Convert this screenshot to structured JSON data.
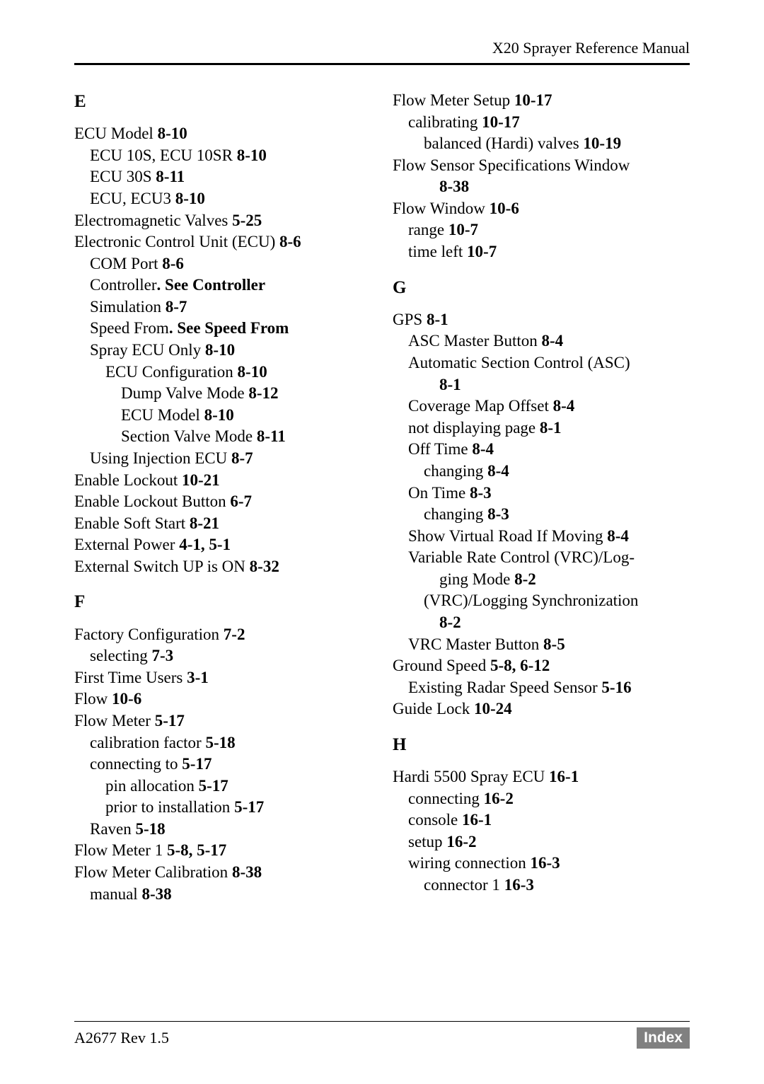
{
  "header": "X20 Sprayer Reference Manual",
  "footer": {
    "left": "A2677 Rev 1.5",
    "right": "Index"
  },
  "E": {
    "letter": "E",
    "e1": "ECU Model  ",
    "e1p": "8-10",
    "e2": "ECU 10S, ECU 10SR  ",
    "e2p": "8-10",
    "e3": "ECU 30S  ",
    "e3p": "8-11",
    "e4": "ECU, ECU3  ",
    "e4p": "8-10",
    "e5": "Electromagnetic Valves  ",
    "e5p": "5-25",
    "e6": "Electronic Control Unit (ECU)  ",
    "e6p": "8-6",
    "e7": "COM Port  ",
    "e7p": "8-6",
    "e8a": "Controller",
    "e8b": ".  See Controller",
    "e9": "Simulation  ",
    "e9p": "8-7",
    "e10a": "Speed From",
    "e10b": ".  See Speed From",
    "e11": "Spray ECU Only  ",
    "e11p": "8-10",
    "e12": "ECU Configuration  ",
    "e12p": "8-10",
    "e13": "Dump Valve Mode  ",
    "e13p": "8-12",
    "e14": "ECU Model  ",
    "e14p": "8-10",
    "e15": "Section Valve Mode  ",
    "e15p": "8-11",
    "e16": "Using Injection ECU  ",
    "e16p": "8-7",
    "e17": "Enable Lockout  ",
    "e17p": "10-21",
    "e18": "Enable Lockout Button  ",
    "e18p": "6-7",
    "e19": "Enable Soft Start  ",
    "e19p": "8-21",
    "e20": "External Power  ",
    "e20p": "4-1, 5-1",
    "e21": "External Switch UP is ON  ",
    "e21p": "8-32"
  },
  "F": {
    "letter": "F",
    "f1": "Factory Configuration  ",
    "f1p": "7-2",
    "f2": "selecting  ",
    "f2p": "7-3",
    "f3": "First Time Users  ",
    "f3p": "3-1",
    "f4": "Flow  ",
    "f4p": "10-6",
    "f5": "Flow Meter  ",
    "f5p": "5-17",
    "f6": "calibration factor  ",
    "f6p": "5-18",
    "f7": "connecting to  ",
    "f7p": "5-17",
    "f8": "pin allocation  ",
    "f8p": "5-17",
    "f9": "prior to installation  ",
    "f9p": "5-17",
    "f10": "Raven  ",
    "f10p": "5-18",
    "f11": "Flow Meter 1  ",
    "f11p": "5-8, 5-17",
    "f12": "Flow Meter Calibration  ",
    "f12p": "8-38",
    "f13": "manual  ",
    "f13p": "8-38"
  },
  "F2": {
    "r1": "Flow Meter Setup  ",
    "r1p": "10-17",
    "r2": "calibrating  ",
    "r2p": "10-17",
    "r3": "balanced (Hardi) valves  ",
    "r3p": "10-19",
    "r4a": "Flow Sensor Specifications Window  ",
    "r4p": "8-38",
    "r5": "Flow Window  ",
    "r5p": "10-6",
    "r6": "range  ",
    "r6p": "10-7",
    "r7": "time left  ",
    "r7p": "10-7"
  },
  "G": {
    "letter": "G",
    "g1": "GPS  ",
    "g1p": "8-1",
    "g2": "ASC Master Button  ",
    "g2p": "8-4",
    "g3a": "Automatic Section Control (ASC)  ",
    "g3p": "8-1",
    "g4": "Coverage Map Offset  ",
    "g4p": "8-4",
    "g5": "not displaying page  ",
    "g5p": "8-1",
    "g6": "Off Time  ",
    "g6p": "8-4",
    "g7": "changing  ",
    "g7p": "8-4",
    "g8": "On Time  ",
    "g8p": "8-3",
    "g9": "changing  ",
    "g9p": "8-3",
    "g10": "Show Virtual Road If Moving  ",
    "g10p": "8-4",
    "g11a": "Variable Rate Control (VRC)/Log-",
    "g11b": "ging Mode  ",
    "g11p": "8-2",
    "g12a": "(VRC)/Logging Synchronization  ",
    "g12p": "8-2",
    "g13": "VRC Master Button  ",
    "g13p": "8-5",
    "g14": "Ground Speed  ",
    "g14p": "5-8, 6-12",
    "g15": "Existing Radar Speed Sensor  ",
    "g15p": "5-16",
    "g16": "Guide Lock  ",
    "g16p": "10-24"
  },
  "H": {
    "letter": "H",
    "h1": "Hardi 5500 Spray ECU  ",
    "h1p": "16-1",
    "h2": "connecting  ",
    "h2p": "16-2",
    "h3": "console  ",
    "h3p": "16-1",
    "h4": "setup  ",
    "h4p": "16-2",
    "h5": "wiring connection  ",
    "h5p": "16-3",
    "h6": "connector 1  ",
    "h6p": "16-3"
  },
  "style": {
    "spacer": " "
  }
}
